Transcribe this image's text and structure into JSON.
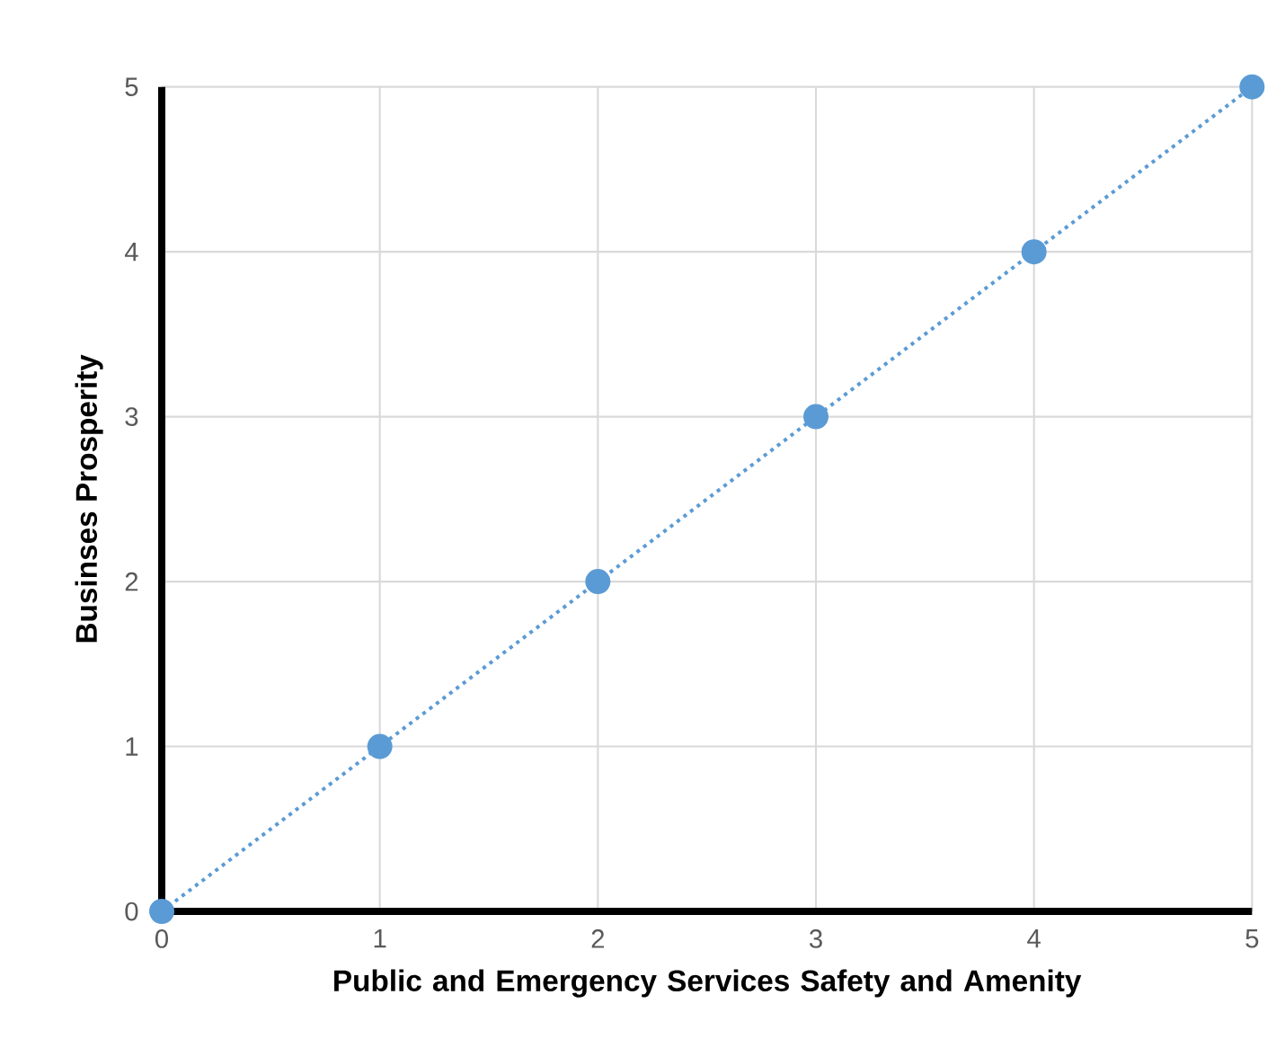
{
  "chart_data": {
    "type": "line",
    "xlabel": "Public and Emergency Services Safety and Amenity",
    "ylabel": "Businses Prosperity",
    "x": [
      0,
      1,
      2,
      3,
      4,
      5
    ],
    "series": [
      {
        "color": "#5b9bd5",
        "values": [
          0,
          1,
          2,
          3,
          4,
          5
        ]
      }
    ],
    "xlim": [
      0,
      5
    ],
    "ylim": [
      0,
      5
    ],
    "xticks": [
      0,
      1,
      2,
      3,
      4,
      5
    ],
    "yticks": [
      0,
      1,
      2,
      3,
      4,
      5
    ],
    "grid": true,
    "marker": "circle",
    "line_style": "dotted"
  }
}
